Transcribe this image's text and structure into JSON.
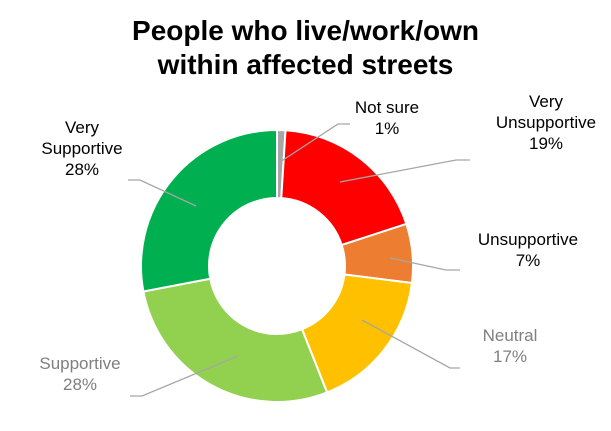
{
  "chart_data": {
    "type": "pie",
    "title_lines": [
      "People who live/work/own",
      "within affected streets"
    ],
    "slices": [
      {
        "label_lines": [
          "Not sure"
        ],
        "value": 1,
        "pct_label": "1%",
        "color": "#a6a6a6",
        "text_color": "#000000"
      },
      {
        "label_lines": [
          "Very",
          "Unsupportive"
        ],
        "value": 19,
        "pct_label": "19%",
        "color": "#ff0000",
        "text_color": "#000000"
      },
      {
        "label_lines": [
          "Unsupportive"
        ],
        "value": 7,
        "pct_label": "7%",
        "color": "#ed7d31",
        "text_color": "#000000"
      },
      {
        "label_lines": [
          "Neutral"
        ],
        "value": 17,
        "pct_label": "17%",
        "color": "#ffc000",
        "text_color": "#7f7f7f"
      },
      {
        "label_lines": [
          "Supportive"
        ],
        "value": 28,
        "pct_label": "28%",
        "color": "#92d050",
        "text_color": "#7f7f7f"
      },
      {
        "label_lines": [
          "Very",
          "Supportive"
        ],
        "value": 28,
        "pct_label": "28%",
        "color": "#00b050",
        "text_color": "#000000"
      }
    ],
    "donut": true,
    "legend": "none"
  }
}
